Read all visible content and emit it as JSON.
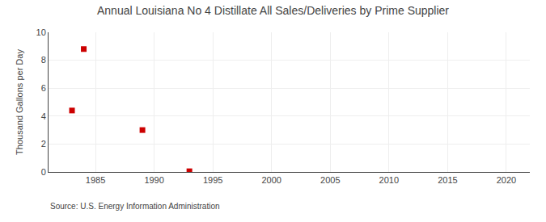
{
  "chart_data": {
    "type": "scatter",
    "title": "Annual Louisiana No 4 Distillate All Sales/Deliveries by Prime Supplier",
    "ylabel": "Thousand Gallons per Day",
    "annotations": [
      "Source: U.S. Energy Information Administration"
    ],
    "x": [
      1983,
      1984,
      1989,
      1993
    ],
    "values": [
      4.4,
      8.8,
      3.0,
      0.05
    ],
    "color": "#cc0000",
    "marker": "square",
    "xlim": [
      1981,
      2022
    ],
    "ylim": [
      0,
      10
    ],
    "xticks": [
      1985,
      1990,
      1995,
      2000,
      2005,
      2010,
      2015,
      2020
    ],
    "yticks": [
      0,
      2,
      4,
      6,
      8,
      10
    ],
    "grid": true
  }
}
